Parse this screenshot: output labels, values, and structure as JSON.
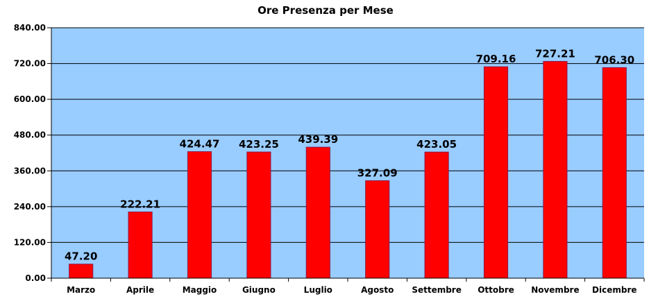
{
  "chart_data": {
    "type": "bar",
    "title": "Ore Presenza per Mese",
    "xlabel": "",
    "ylabel": "",
    "categories": [
      "Marzo",
      "Aprile",
      "Maggio",
      "Giugno",
      "Luglio",
      "Agosto",
      "Settembre",
      "Ottobre",
      "Novembre",
      "Dicembre"
    ],
    "values": [
      47.2,
      222.21,
      424.47,
      423.25,
      439.39,
      327.09,
      423.05,
      709.16,
      727.21,
      706.3
    ],
    "value_labels": [
      "47.20",
      "222.21",
      "424.47",
      "423.25",
      "439.39",
      "327.09",
      "423.05",
      "709.16",
      "727.21",
      "706.30"
    ],
    "ylim": [
      0,
      840
    ],
    "yticks": [
      0,
      120,
      240,
      360,
      480,
      600,
      720,
      840
    ],
    "ytick_labels": [
      "0.00",
      "120.00",
      "240.00",
      "360.00",
      "480.00",
      "600.00",
      "720.00",
      "840.00"
    ],
    "grid": true,
    "legend": "none",
    "colors": {
      "bar": "#ff0000",
      "bar_border": "#8b1a4a",
      "plot_background": "#99ccff",
      "grid": "#000000",
      "text": "#000000"
    }
  }
}
